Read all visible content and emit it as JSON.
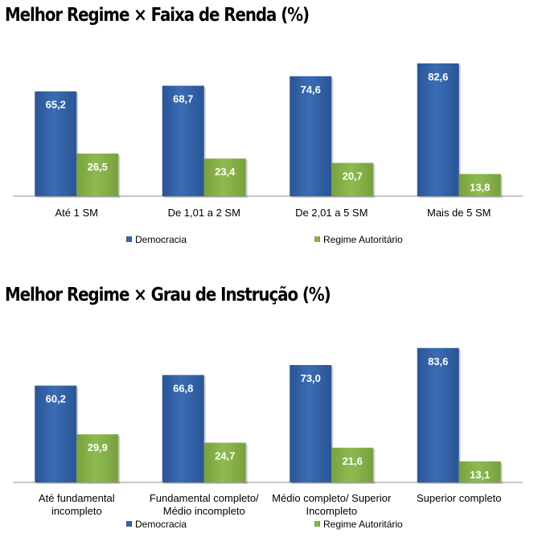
{
  "colors": {
    "democracia": "#2a5596",
    "democracia_light": "#3a6cb4",
    "autoritario": "#78a13f",
    "autoritario_light": "#8fba4f",
    "axis": "#8c8c8c"
  },
  "chart_data": [
    {
      "type": "bar",
      "title": "Melhor Regime × Faixa de Renda (%)",
      "categories": [
        "Até 1 SM",
        "De 1,01 a 2 SM",
        "De 2,01 a 5 SM",
        "Mais de 5 SM"
      ],
      "series": [
        {
          "name": "Democracia",
          "values": [
            65.2,
            68.7,
            74.6,
            82.6
          ],
          "labels": [
            "65,2",
            "68,7",
            "74,6",
            "82,6"
          ]
        },
        {
          "name": "Regime Autoritário",
          "values": [
            26.5,
            23.4,
            20.7,
            13.8
          ],
          "labels": [
            "26,5",
            "23,4",
            "20,7",
            "13,8"
          ]
        }
      ],
      "ylim": [
        0,
        85
      ],
      "legend": "bottom",
      "grid": false
    },
    {
      "type": "bar",
      "title": "Melhor Regime × Grau de Instrução (%)",
      "categories": [
        [
          "Até fundamental",
          "incompleto"
        ],
        [
          "Fundamental completo/",
          "Médio incompleto"
        ],
        [
          "Médio completo/ Superior",
          "Incompleto"
        ],
        [
          "Superior completo"
        ]
      ],
      "series": [
        {
          "name": "Democracia",
          "values": [
            60.2,
            66.8,
            73.0,
            83.6
          ],
          "labels": [
            "60,2",
            "66,8",
            "73,0",
            "83,6"
          ]
        },
        {
          "name": "Regime Autoritário",
          "values": [
            29.9,
            24.7,
            21.6,
            13.1
          ],
          "labels": [
            "29,9",
            "24,7",
            "21,6",
            "13,1"
          ]
        }
      ],
      "ylim": [
        0,
        85
      ],
      "legend": "bottom",
      "grid": false
    }
  ]
}
